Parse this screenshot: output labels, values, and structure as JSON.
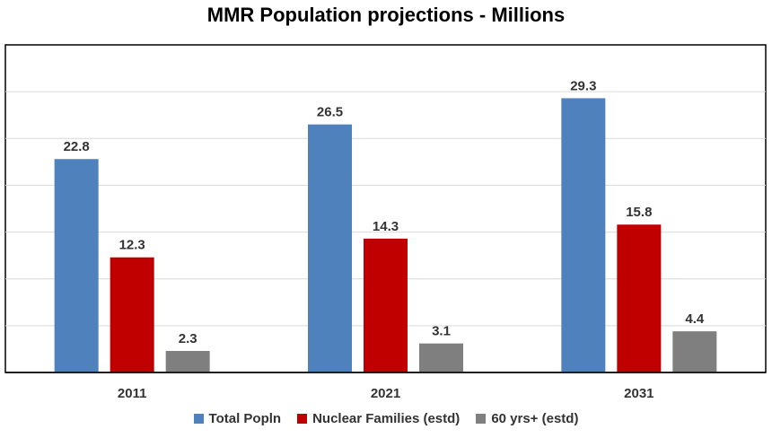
{
  "chart_data": {
    "type": "bar",
    "title": "MMR Population projections - Millions",
    "categories": [
      "2011",
      "2021",
      "2031"
    ],
    "series": [
      {
        "name": "Total Popln",
        "values": [
          22.8,
          26.5,
          29.3
        ],
        "color": "#4f81bd"
      },
      {
        "name": "Nuclear Families (estd)",
        "values": [
          12.3,
          14.3,
          15.8
        ],
        "color": "#c00000"
      },
      {
        "name": "60 yrs+ (estd)",
        "values": [
          2.3,
          3.1,
          4.4
        ],
        "color": "#7f7f7f"
      }
    ],
    "ylim": [
      0,
      35
    ],
    "grid": true,
    "legend": "bottom",
    "data_labels": true
  }
}
